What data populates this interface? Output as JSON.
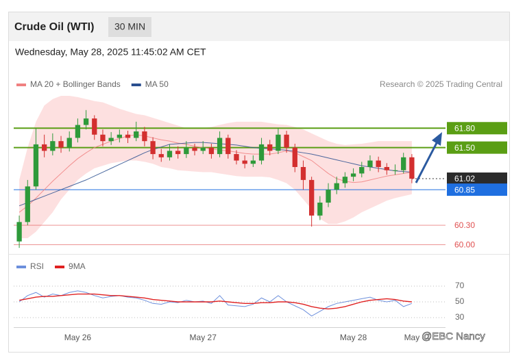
{
  "header": {
    "title": "Crude Oil (WTI)",
    "interval": "30 MIN",
    "timestamp": "Wednesday, May 28, 2025 11:45:02 AM CET"
  },
  "watermark": "@EBC Nancy",
  "chart_data": [
    {
      "type": "candlestick",
      "credit": "Research © 2025 Trading Central",
      "up_color": "#2e9a3a",
      "down_color": "#d32f2f",
      "ylim": [
        59.92,
        62.3
      ],
      "open": [
        60.05,
        60.35,
        60.9,
        61.55,
        61.45,
        61.6,
        61.5,
        61.65,
        61.85,
        61.95,
        61.7,
        61.6,
        61.65,
        61.7,
        61.65,
        61.75,
        61.6,
        61.4,
        61.35,
        61.45,
        61.4,
        61.5,
        61.45,
        61.5,
        61.4,
        61.65,
        61.4,
        61.3,
        61.25,
        61.3,
        61.55,
        61.45,
        61.7,
        61.5,
        61.2,
        61.0,
        60.45,
        60.65,
        60.85,
        60.95,
        61.05,
        61.1,
        61.2,
        61.3,
        61.2,
        61.15,
        61.15,
        61.35
      ],
      "high": [
        60.45,
        61.0,
        61.8,
        61.7,
        61.72,
        61.68,
        61.75,
        61.95,
        62.08,
        62.0,
        61.78,
        61.74,
        61.78,
        61.76,
        61.9,
        61.82,
        61.66,
        61.48,
        61.55,
        61.52,
        61.6,
        61.56,
        61.6,
        61.56,
        61.75,
        61.7,
        61.46,
        61.38,
        61.38,
        61.65,
        61.62,
        61.8,
        61.76,
        61.56,
        61.3,
        61.05,
        60.75,
        60.95,
        61.05,
        61.12,
        61.18,
        61.28,
        61.38,
        61.36,
        61.26,
        61.24,
        61.42,
        61.4
      ],
      "low": [
        59.95,
        60.3,
        60.85,
        61.35,
        61.38,
        61.42,
        61.44,
        61.58,
        61.78,
        61.62,
        61.52,
        61.54,
        61.58,
        61.57,
        61.6,
        61.52,
        61.32,
        61.28,
        61.3,
        61.33,
        61.34,
        61.38,
        61.4,
        61.33,
        61.35,
        61.33,
        61.24,
        61.18,
        61.2,
        61.24,
        61.38,
        61.4,
        61.42,
        61.12,
        60.85,
        60.28,
        60.38,
        60.58,
        60.78,
        60.88,
        60.98,
        61.04,
        61.14,
        61.12,
        61.08,
        61.08,
        61.1,
        60.95
      ],
      "close": [
        60.35,
        60.9,
        61.55,
        61.45,
        61.6,
        61.5,
        61.65,
        61.85,
        61.95,
        61.7,
        61.6,
        61.65,
        61.7,
        61.65,
        61.75,
        61.6,
        61.4,
        61.35,
        61.45,
        61.4,
        61.5,
        61.45,
        61.5,
        61.4,
        61.65,
        61.4,
        61.3,
        61.25,
        61.3,
        61.55,
        61.45,
        61.7,
        61.5,
        61.2,
        61.0,
        60.45,
        60.65,
        60.85,
        60.95,
        61.05,
        61.1,
        61.2,
        61.3,
        61.2,
        61.15,
        61.15,
        61.35,
        61.02
      ],
      "series": [
        {
          "name": "MA 20 + Bollinger Bands",
          "color": "#f08080",
          "band_color": "#fcd6d6",
          "values": [
            60.5,
            60.6,
            60.72,
            60.85,
            60.98,
            61.1,
            61.22,
            61.33,
            61.42,
            61.5,
            61.55,
            61.6,
            61.64,
            61.68,
            61.7,
            61.68,
            61.65,
            61.62,
            61.6,
            61.57,
            61.55,
            61.52,
            61.5,
            61.48,
            61.46,
            61.45,
            61.43,
            61.41,
            61.4,
            61.4,
            61.4,
            61.42,
            61.45,
            61.42,
            61.36,
            61.3,
            61.2,
            61.1,
            61.02,
            60.98,
            60.96,
            60.97,
            61.0,
            61.03,
            61.06,
            61.08,
            61.1,
            61.12
          ],
          "upper": [
            61.0,
            61.5,
            61.9,
            62.15,
            62.25,
            62.3,
            62.3,
            62.28,
            62.25,
            62.22,
            62.2,
            62.15,
            62.1,
            62.06,
            62.02,
            62.0,
            61.96,
            61.92,
            61.88,
            61.84,
            61.8,
            61.8,
            61.8,
            61.82,
            61.85,
            61.88,
            61.9,
            61.9,
            61.9,
            61.9,
            61.88,
            61.86,
            61.85,
            61.82,
            61.78,
            61.72,
            61.66,
            61.6,
            61.56,
            61.54,
            61.55,
            61.56,
            61.58,
            61.6,
            61.6,
            61.6,
            61.6,
            61.6
          ],
          "lower": [
            60.1,
            60.1,
            60.2,
            60.35,
            60.5,
            60.7,
            60.85,
            61.0,
            61.1,
            61.18,
            61.22,
            61.26,
            61.28,
            61.3,
            61.3,
            61.28,
            61.25,
            61.2,
            61.18,
            61.15,
            61.14,
            61.13,
            61.12,
            61.12,
            61.1,
            61.08,
            61.06,
            61.05,
            61.05,
            61.05,
            61.04,
            61.0,
            60.95,
            60.85,
            60.7,
            60.55,
            60.4,
            60.32,
            60.32,
            60.36,
            60.42,
            60.5,
            60.56,
            60.62,
            60.68,
            60.72,
            60.75,
            60.78
          ]
        },
        {
          "name": "MA 50",
          "color": "#2a4f8f",
          "values": [
            60.6,
            60.65,
            60.7,
            60.75,
            60.8,
            60.85,
            60.9,
            60.95,
            61.0,
            61.06,
            61.12,
            61.18,
            61.24,
            61.3,
            61.36,
            61.42,
            61.47,
            61.51,
            61.55,
            61.56,
            61.57,
            61.58,
            61.58,
            61.57,
            61.56,
            61.55,
            61.54,
            61.52,
            61.5,
            61.49,
            61.48,
            61.47,
            61.46,
            61.44,
            61.42,
            61.4,
            61.37,
            61.34,
            61.31,
            61.28,
            61.25,
            61.22,
            61.2,
            61.18,
            61.16,
            61.14,
            61.13,
            61.12
          ]
        }
      ],
      "levels": [
        {
          "value": 61.8,
          "label": "61.80",
          "color": "#5a9e14",
          "box": true,
          "dash": false
        },
        {
          "value": 61.5,
          "label": "61.50",
          "color": "#5a9e14",
          "box": true,
          "dash": false
        },
        {
          "value": 61.02,
          "label": "61.02",
          "color": "#2b2b2b",
          "box": true,
          "dash": true
        },
        {
          "value": 60.85,
          "label": "60.85",
          "color": "#1f6fe0",
          "box": true,
          "dash": false
        },
        {
          "value": 60.3,
          "label": "60.30",
          "color": "#e05050",
          "box": false,
          "dash": false
        },
        {
          "value": 60.0,
          "label": "60.00",
          "color": "#e05050",
          "box": false,
          "dash": false
        }
      ]
    },
    {
      "type": "line",
      "ylim": [
        23,
        77
      ],
      "yticks": [
        30,
        50,
        70
      ],
      "grid": true,
      "categories": [
        null,
        null,
        null,
        null,
        null,
        null,
        null,
        "May 26",
        null,
        null,
        null,
        null,
        null,
        null,
        null,
        null,
        null,
        null,
        null,
        null,
        null,
        null,
        "May 27",
        null,
        null,
        null,
        null,
        null,
        null,
        null,
        null,
        null,
        null,
        null,
        null,
        null,
        null,
        null,
        null,
        null,
        "May 28",
        null,
        null,
        null,
        null,
        null,
        null,
        "May"
      ],
      "series": [
        {
          "name": "RSI",
          "color": "#6c8fdc",
          "values": [
            50,
            58,
            62,
            56,
            60,
            58,
            62,
            64,
            62,
            58,
            55,
            57,
            58,
            56,
            55,
            52,
            48,
            47,
            50,
            49,
            52,
            50,
            51,
            48,
            58,
            46,
            45,
            44,
            47,
            55,
            50,
            58,
            50,
            45,
            40,
            32,
            38,
            44,
            48,
            50,
            52,
            54,
            56,
            52,
            50,
            52,
            44,
            48
          ]
        },
        {
          "name": "9MA",
          "color": "#e02020",
          "values": [
            52,
            54,
            56,
            57,
            57,
            58,
            59,
            60,
            60,
            60,
            59,
            58,
            58,
            57,
            56,
            55,
            53,
            52,
            51,
            50,
            50,
            50,
            50,
            50,
            51,
            50,
            49,
            48,
            48,
            49,
            49,
            50,
            50,
            49,
            47,
            44,
            42,
            41,
            42,
            44,
            47,
            50,
            52,
            53,
            54,
            53,
            51,
            50
          ]
        }
      ]
    }
  ]
}
